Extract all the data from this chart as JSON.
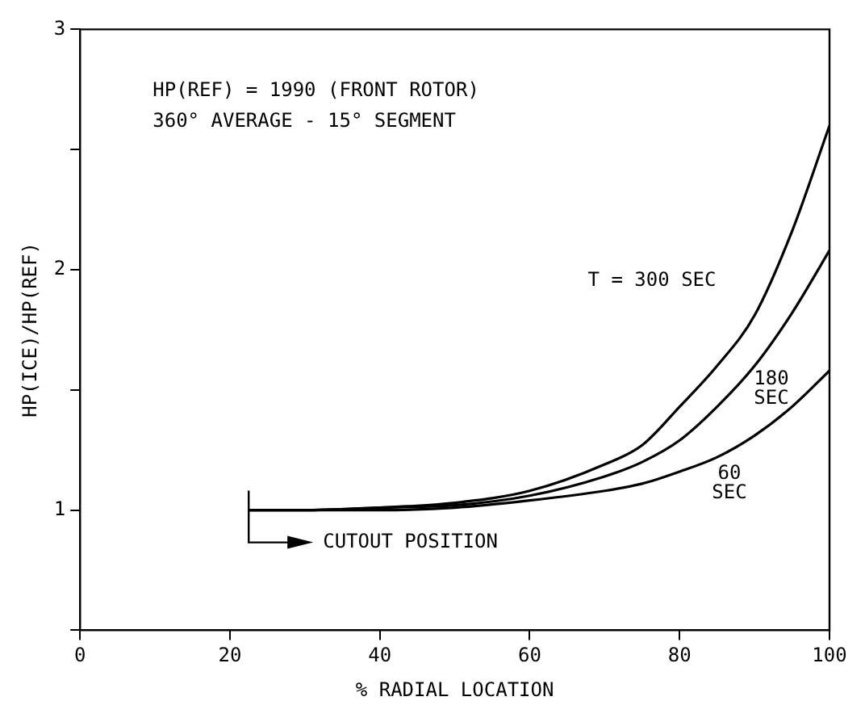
{
  "chart_data": {
    "type": "line",
    "xlabel": "% RADIAL LOCATION",
    "ylabel": "HP(ICE)/HP(REF)",
    "xlim": [
      0,
      100
    ],
    "xticks": [
      0,
      20,
      40,
      60,
      80,
      100
    ],
    "ylim": [
      0.5,
      3
    ],
    "yticks": [
      {
        "value": 0.5,
        "label": null
      },
      1,
      {
        "value": 1.5,
        "label": null
      },
      2,
      {
        "value": 2.5,
        "label": null
      },
      3
    ],
    "grid": false,
    "legend": false,
    "marker": "none",
    "line_style": "solid",
    "annotations": [
      "HP(REF) = 1990 (FRONT ROTOR)",
      "360° AVERAGE - 15° SEGMENT",
      "CUTOUT POSITION"
    ],
    "series": [
      {
        "name": "T = 300 SEC",
        "color": "#000000",
        "x": [
          22.5,
          30,
          40,
          50,
          60,
          70,
          75,
          80,
          85,
          90,
          95,
          100
        ],
        "values": [
          1,
          1,
          1.01,
          1.03,
          1.08,
          1.19,
          1.27,
          1.43,
          1.6,
          1.81,
          2.16,
          2.6
        ]
      },
      {
        "name": "180\nSEC",
        "color": "#000000",
        "x": [
          22.5,
          30,
          40,
          50,
          60,
          70,
          75,
          80,
          85,
          90,
          95,
          100
        ],
        "values": [
          1,
          1,
          1.01,
          1.02,
          1.06,
          1.14,
          1.2,
          1.29,
          1.43,
          1.6,
          1.82,
          2.08
        ]
      },
      {
        "name": "60\nSEC",
        "color": "#000000",
        "x": [
          22.5,
          30,
          40,
          50,
          60,
          70,
          75,
          80,
          85,
          90,
          95,
          100
        ],
        "values": [
          1,
          1,
          1,
          1.01,
          1.04,
          1.08,
          1.11,
          1.16,
          1.22,
          1.31,
          1.43,
          1.58
        ]
      }
    ]
  }
}
